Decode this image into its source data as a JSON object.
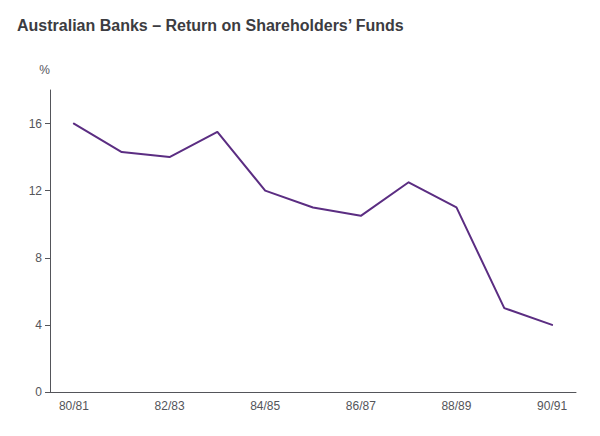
{
  "chart_data": {
    "type": "line",
    "title": "Australian Banks – Return on Shareholders’ Funds",
    "ylabel": "%",
    "categories": [
      "80/81",
      null,
      "82/83",
      null,
      "84/85",
      null,
      "86/87",
      null,
      "88/89",
      null,
      "90/91"
    ],
    "values": [
      16.0,
      14.3,
      14.0,
      15.5,
      12.0,
      11.0,
      10.5,
      12.5,
      11.0,
      5.0,
      4.0
    ],
    "color": "#5b2d82",
    "ylim": [
      0,
      18
    ],
    "yticks": [
      0,
      4,
      8,
      12,
      16
    ],
    "grid": false
  }
}
